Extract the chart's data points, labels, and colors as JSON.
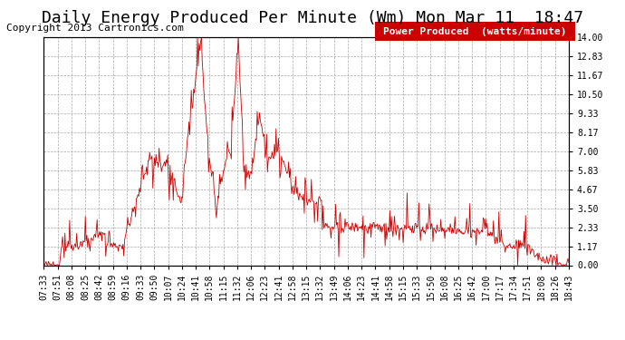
{
  "title": "Daily Energy Produced Per Minute (Wm) Mon Mar 11  18:47",
  "copyright": "Copyright 2013 Cartronics.com",
  "legend_label": "Power Produced  (watts/minute)",
  "legend_bg": "#cc0000",
  "legend_fg": "#ffffff",
  "line_color": "#cc0000",
  "bg_color": "#ffffff",
  "grid_color": "#aaaaaa",
  "ytick_labels": [
    "0.00",
    "1.17",
    "2.33",
    "3.50",
    "4.67",
    "5.83",
    "7.00",
    "8.17",
    "9.33",
    "10.50",
    "11.67",
    "12.83",
    "14.00"
  ],
  "ylim": [
    0.0,
    14.0
  ],
  "xtick_labels": [
    "07:33",
    "07:51",
    "08:08",
    "08:25",
    "08:42",
    "08:59",
    "09:16",
    "09:33",
    "09:50",
    "10:07",
    "10:24",
    "10:41",
    "10:58",
    "11:15",
    "11:32",
    "12:06",
    "12:23",
    "12:41",
    "12:58",
    "13:15",
    "13:32",
    "13:49",
    "14:06",
    "14:23",
    "14:41",
    "14:58",
    "15:15",
    "15:33",
    "15:50",
    "16:08",
    "16:25",
    "16:42",
    "17:00",
    "17:17",
    "17:34",
    "17:51",
    "18:08",
    "18:26",
    "18:43"
  ],
  "title_fontsize": 13,
  "copyright_fontsize": 8,
  "tick_fontsize": 7,
  "legend_fontsize": 8,
  "n_points": 670
}
